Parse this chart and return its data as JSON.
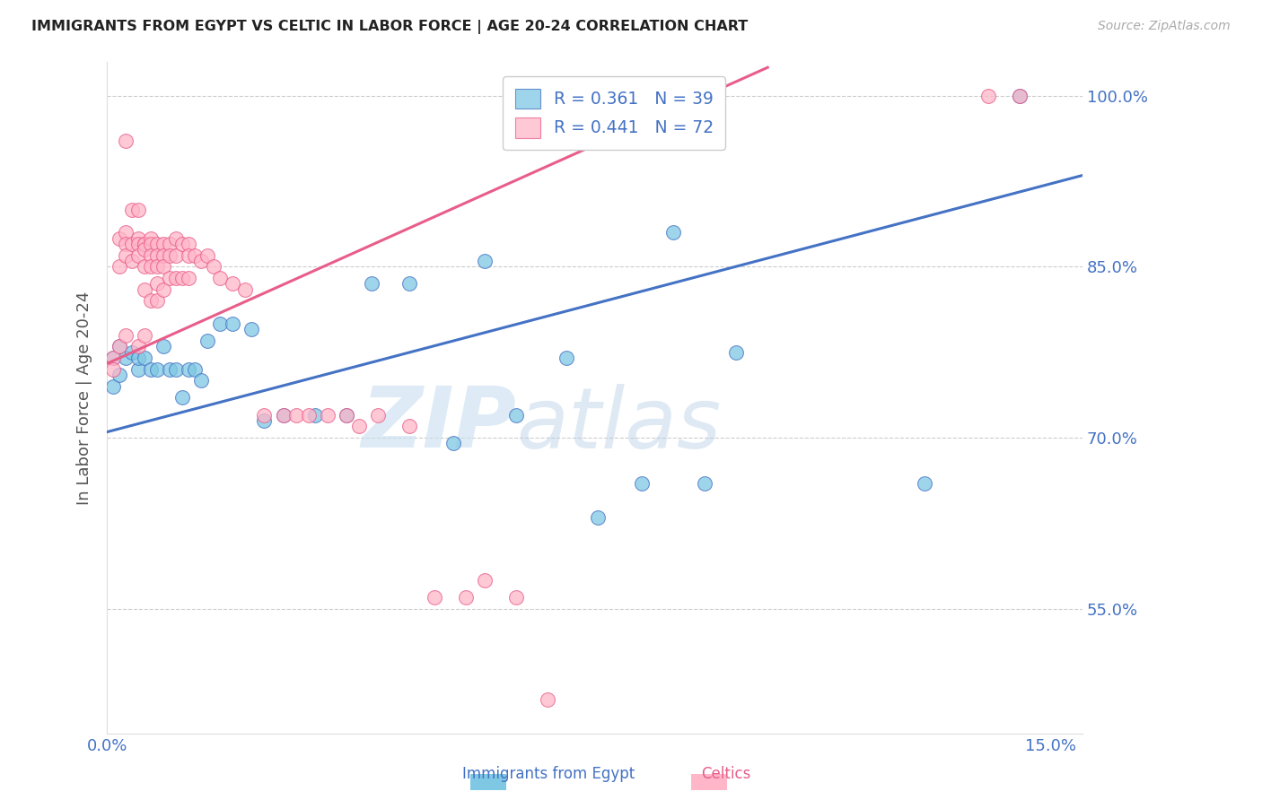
{
  "title": "IMMIGRANTS FROM EGYPT VS CELTIC IN LABOR FORCE | AGE 20-24 CORRELATION CHART",
  "source": "Source: ZipAtlas.com",
  "ylabel": "In Labor Force | Age 20-24",
  "xlim": [
    0.0,
    0.155
  ],
  "ylim": [
    0.44,
    1.03
  ],
  "yticks": [
    0.55,
    0.7,
    0.85,
    1.0
  ],
  "ytick_labels": [
    "55.0%",
    "70.0%",
    "85.0%",
    "100.0%"
  ],
  "xtick_vals": [
    0.0,
    0.03,
    0.06,
    0.09,
    0.12,
    0.15
  ],
  "xtick_labels": [
    "0.0%",
    "",
    "",
    "",
    "",
    "15.0%"
  ],
  "egypt_color": "#7ec8e3",
  "celtic_color": "#ffb6c8",
  "egypt_line_color": "#4472c4",
  "celtic_line_color": "#e85d8a",
  "egypt_x": [
    0.001,
    0.001,
    0.002,
    0.002,
    0.003,
    0.004,
    0.005,
    0.005,
    0.006,
    0.007,
    0.008,
    0.009,
    0.01,
    0.011,
    0.012,
    0.013,
    0.014,
    0.015,
    0.016,
    0.018,
    0.02,
    0.023,
    0.025,
    0.028,
    0.033,
    0.038,
    0.042,
    0.048,
    0.055,
    0.06,
    0.065,
    0.073,
    0.078,
    0.085,
    0.09,
    0.095,
    0.1,
    0.13,
    0.145
  ],
  "egypt_y": [
    0.77,
    0.745,
    0.78,
    0.755,
    0.77,
    0.775,
    0.76,
    0.77,
    0.77,
    0.76,
    0.76,
    0.78,
    0.76,
    0.76,
    0.735,
    0.76,
    0.76,
    0.75,
    0.785,
    0.8,
    0.8,
    0.795,
    0.715,
    0.72,
    0.72,
    0.72,
    0.835,
    0.835,
    0.695,
    0.855,
    0.72,
    0.77,
    0.63,
    0.66,
    0.88,
    0.66,
    0.775,
    0.66,
    1.0
  ],
  "celtic_x": [
    0.001,
    0.001,
    0.002,
    0.002,
    0.002,
    0.003,
    0.003,
    0.003,
    0.003,
    0.003,
    0.004,
    0.004,
    0.004,
    0.005,
    0.005,
    0.005,
    0.005,
    0.005,
    0.006,
    0.006,
    0.006,
    0.006,
    0.006,
    0.006,
    0.007,
    0.007,
    0.007,
    0.007,
    0.007,
    0.008,
    0.008,
    0.008,
    0.008,
    0.008,
    0.009,
    0.009,
    0.009,
    0.009,
    0.01,
    0.01,
    0.01,
    0.011,
    0.011,
    0.011,
    0.012,
    0.012,
    0.013,
    0.013,
    0.013,
    0.014,
    0.015,
    0.016,
    0.017,
    0.018,
    0.02,
    0.022,
    0.025,
    0.028,
    0.03,
    0.032,
    0.035,
    0.038,
    0.04,
    0.043,
    0.048,
    0.052,
    0.057,
    0.06,
    0.065,
    0.07,
    0.14,
    0.145
  ],
  "celtic_y": [
    0.77,
    0.76,
    0.875,
    0.85,
    0.78,
    0.96,
    0.88,
    0.87,
    0.86,
    0.79,
    0.9,
    0.87,
    0.855,
    0.9,
    0.875,
    0.87,
    0.86,
    0.78,
    0.87,
    0.87,
    0.865,
    0.85,
    0.83,
    0.79,
    0.875,
    0.87,
    0.86,
    0.85,
    0.82,
    0.87,
    0.86,
    0.85,
    0.835,
    0.82,
    0.87,
    0.86,
    0.85,
    0.83,
    0.87,
    0.86,
    0.84,
    0.875,
    0.86,
    0.84,
    0.87,
    0.84,
    0.87,
    0.86,
    0.84,
    0.86,
    0.855,
    0.86,
    0.85,
    0.84,
    0.835,
    0.83,
    0.72,
    0.72,
    0.72,
    0.72,
    0.72,
    0.72,
    0.71,
    0.72,
    0.71,
    0.56,
    0.56,
    0.575,
    0.56,
    0.47,
    1.0,
    1.0
  ]
}
